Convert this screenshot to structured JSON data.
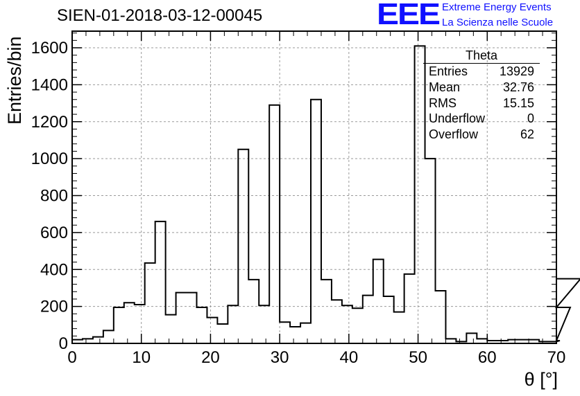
{
  "chart_data": {
    "type": "histogram",
    "title": "SIEN-01-2018-03-12-00045",
    "xlabel": "θ [°]",
    "ylabel": "Entries/bin",
    "xlim": [
      0,
      70
    ],
    "ylim": [
      0,
      1690
    ],
    "xticks": [
      0,
      10,
      20,
      30,
      40,
      50,
      60,
      70
    ],
    "yticks": [
      0,
      200,
      400,
      600,
      800,
      1000,
      1200,
      1400,
      1600
    ],
    "grid": true,
    "bin_width": 1.5,
    "bin_edges_start": 0,
    "values": [
      20,
      25,
      35,
      70,
      195,
      220,
      210,
      435,
      660,
      155,
      275,
      275,
      195,
      140,
      105,
      205,
      1050,
      345,
      205,
      1290,
      115,
      90,
      110,
      1320,
      345,
      235,
      205,
      190,
      260,
      455,
      255,
      170,
      375,
      1610,
      1000,
      285,
      25,
      10,
      55,
      25,
      15,
      15,
      20,
      20,
      20,
      10,
      10,
      15,
      195,
      350
    ],
    "stats_box": {
      "title": "Theta",
      "rows": [
        {
          "label": "Entries",
          "value": "13929"
        },
        {
          "label": "Mean",
          "value": "32.76"
        },
        {
          "label": "RMS",
          "value": "15.15"
        },
        {
          "label": "Underflow",
          "value": "0"
        },
        {
          "label": "Overflow",
          "value": "62"
        }
      ]
    }
  },
  "logo": {
    "mark": "EEE",
    "line1": "Extreme Energy Events",
    "line2": "La Scienza nelle Scuole",
    "color": "#1010ff"
  }
}
